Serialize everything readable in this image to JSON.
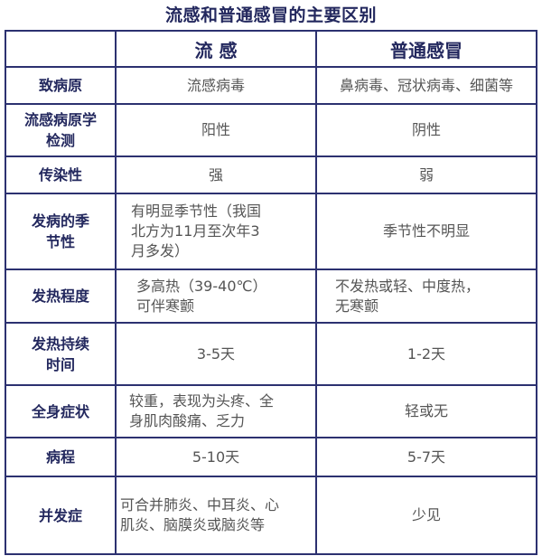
{
  "title": "流感和普通感冒的主要区别",
  "columns": [
    "",
    "流 感",
    "普通感冒"
  ],
  "rows": [
    {
      "label": "致病原",
      "flu": "流感病毒",
      "cold": "鼻病毒、冠状病毒、细菌等"
    },
    {
      "label": "流感病原学\n检测",
      "flu": "阳性",
      "cold": "阴性"
    },
    {
      "label": "传染性",
      "flu": "强",
      "cold": "弱"
    },
    {
      "label": "发病的季\n节性",
      "flu": "有明显季节性（我国\n北方为11月至次年3\n月多发）",
      "cold": "季节性不明显"
    },
    {
      "label": "发热程度",
      "flu": "多高热（39-40℃）\n可伴寒颤",
      "cold": "不发热或轻、中度热，\n无寒颤"
    },
    {
      "label": "发热持续\n时间",
      "flu": "3-5天",
      "cold": "1-2天"
    },
    {
      "label": "全身症状",
      "flu": "较重，表现为头疼、全\n身肌肉酸痛、乏力",
      "cold": "轻或无"
    },
    {
      "label": "病程",
      "flu": "5-10天",
      "cold": "5-7天"
    },
    {
      "label": "并发症",
      "flu": "可合并肺炎、中耳炎、心\n肌炎、脑膜炎或脑炎等",
      "cold": "少见"
    }
  ]
}
